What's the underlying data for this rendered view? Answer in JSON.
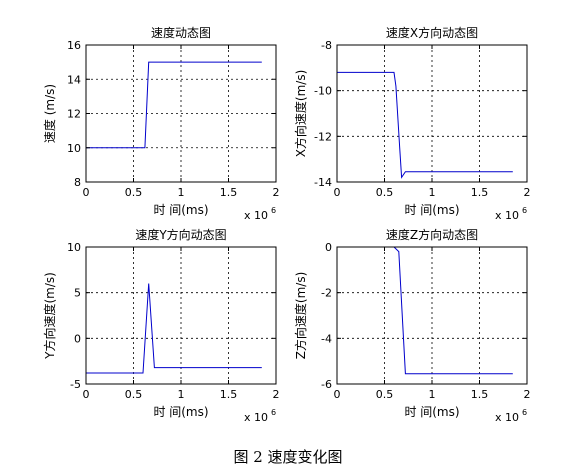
{
  "figure": {
    "caption": "图 2  速度变化图"
  },
  "chart_data": [
    {
      "type": "line",
      "title": "速度动态图",
      "xlabel": "时 间(ms)",
      "ylabel": "速度 (m/s)",
      "x_multiplier": "x 10",
      "x_multiplier_exp": "6",
      "xlim": [
        0,
        2
      ],
      "ylim": [
        8,
        16
      ],
      "xticks": [
        0,
        0.5,
        1,
        1.5,
        2
      ],
      "xtick_labels": [
        "0",
        "0.5",
        "1",
        "1.5",
        "2"
      ],
      "yticks": [
        8,
        10,
        12,
        14,
        16
      ],
      "ytick_labels": [
        "8",
        "10",
        "12",
        "14",
        "16"
      ],
      "grid": true,
      "line_color": "#0000cc",
      "x": [
        0,
        0.62,
        0.66,
        1.85
      ],
      "y": [
        10,
        10,
        15,
        15
      ]
    },
    {
      "type": "line",
      "title": "速度X方向动态图",
      "xlabel": "时 间(ms)",
      "ylabel": "X方向速度(m/s)",
      "x_multiplier": "x 10",
      "x_multiplier_exp": "6",
      "xlim": [
        0,
        2
      ],
      "ylim": [
        -14,
        -8
      ],
      "xticks": [
        0,
        0.5,
        1,
        1.5,
        2
      ],
      "xtick_labels": [
        "0",
        "0.5",
        "1",
        "1.5",
        "2"
      ],
      "yticks": [
        -14,
        -12,
        -10,
        -8
      ],
      "ytick_labels": [
        "-14",
        "-12",
        "-10",
        "-8"
      ],
      "grid": true,
      "line_color": "#0000cc",
      "x": [
        0,
        0.6,
        0.62,
        0.66,
        0.68,
        0.72,
        1.85
      ],
      "y": [
        -9.2,
        -9.2,
        -9.8,
        -12.5,
        -13.8,
        -13.55,
        -13.55
      ]
    },
    {
      "type": "line",
      "title": "速度Y方向动态图",
      "xlabel": "时 间(ms)",
      "ylabel": "Y方向速度(m/s)",
      "x_multiplier": "x 10",
      "x_multiplier_exp": "6",
      "xlim": [
        0,
        2
      ],
      "ylim": [
        -5,
        10
      ],
      "xticks": [
        0,
        0.5,
        1,
        1.5,
        2
      ],
      "xtick_labels": [
        "0",
        "0.5",
        "1",
        "1.5",
        "2"
      ],
      "yticks": [
        -5,
        0,
        5,
        10
      ],
      "ytick_labels": [
        "-5",
        "0",
        "5",
        "10"
      ],
      "grid": true,
      "line_color": "#0000cc",
      "x": [
        0,
        0.6,
        0.66,
        0.72,
        1.85
      ],
      "y": [
        -3.8,
        -3.8,
        6,
        -3.2,
        -3.2
      ]
    },
    {
      "type": "line",
      "title": "速度Z方向动态图",
      "xlabel": "时 间(ms)",
      "ylabel": "Z方向速度(m/s)",
      "x_multiplier": "x 10",
      "x_multiplier_exp": "6",
      "xlim": [
        0,
        2
      ],
      "ylim": [
        -6,
        0
      ],
      "xticks": [
        0,
        0.5,
        1,
        1.5,
        2
      ],
      "xtick_labels": [
        "0",
        "0.5",
        "1",
        "1.5",
        "2"
      ],
      "yticks": [
        -6,
        -4,
        -2,
        0
      ],
      "ytick_labels": [
        "-6",
        "-4",
        "-2",
        "0"
      ],
      "grid": true,
      "line_color": "#0000cc",
      "x": [
        0.6,
        0.65,
        0.72,
        1.85
      ],
      "y": [
        0,
        -0.2,
        -5.55,
        -5.55
      ]
    }
  ]
}
